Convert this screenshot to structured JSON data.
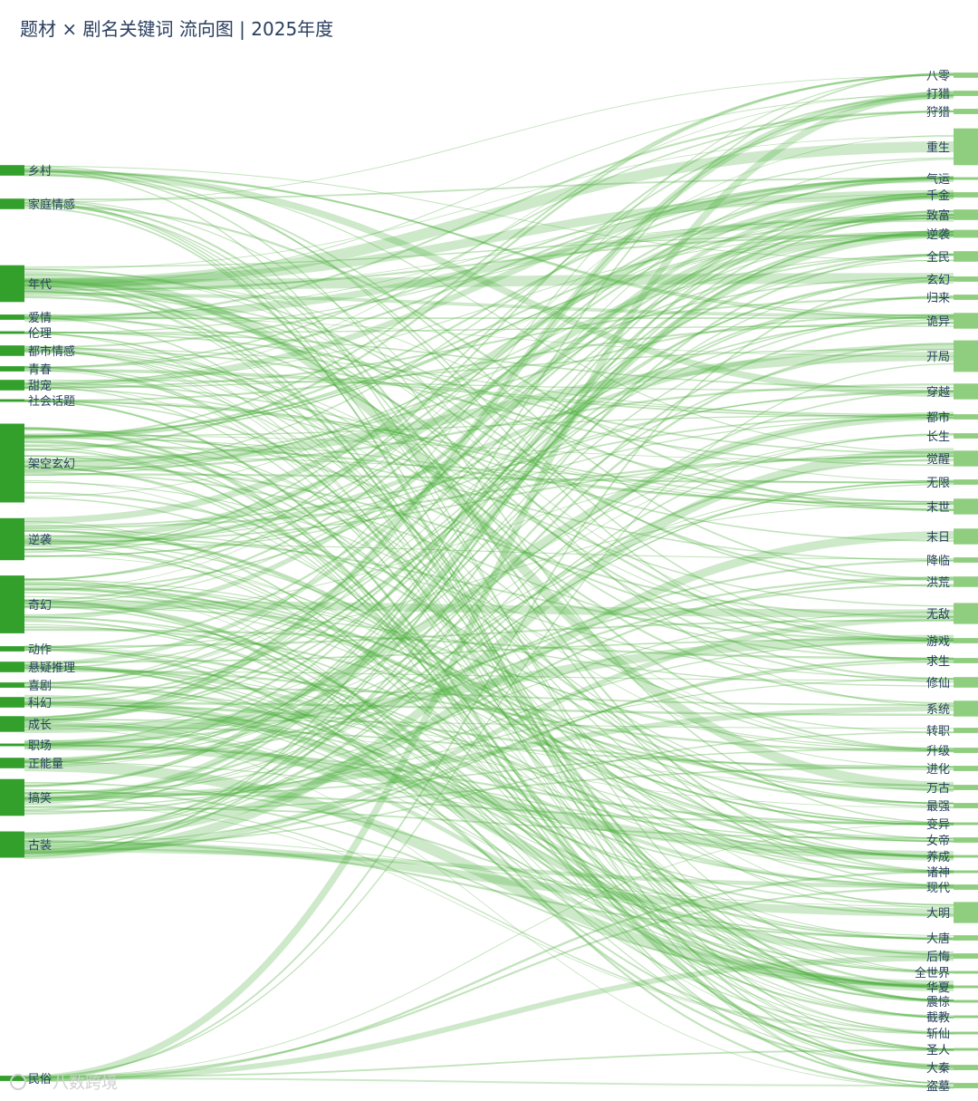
{
  "title": "题材 × 剧名关键词 流向图 | 2025年度",
  "watermark": "八数跨境",
  "colors": {
    "node_left": "#33a02c",
    "node_right": "#8fce7f",
    "link": "#4caf3c",
    "title": "#2a3f5f",
    "label": "#2a3f5f"
  },
  "chart_data": {
    "type": "sankey",
    "source_nodes": [
      "乡村",
      "家庭情感",
      "年代",
      "爱情",
      "伦理",
      "都市情感",
      "青春",
      "甜宠",
      "社会话题",
      "架空玄幻",
      "逆袭",
      "奇幻",
      "动作",
      "悬疑推理",
      "喜剧",
      "科幻",
      "成长",
      "职场",
      "正能量",
      "搞笑",
      "古装",
      "民俗"
    ],
    "target_nodes": [
      "八零",
      "打猎",
      "狩猎",
      "重生",
      "气运",
      "千金",
      "致富",
      "逆袭",
      "全民",
      "玄幻",
      "归来",
      "诡异",
      "开局",
      "穿越",
      "都市",
      "长生",
      "觉醒",
      "无限",
      "末世",
      "末日",
      "降临",
      "洪荒",
      "无敌",
      "游戏",
      "求生",
      "修仙",
      "系统",
      "转职",
      "升级",
      "进化",
      "万古",
      "最强",
      "变异",
      "女帝",
      "养成",
      "诸神",
      "现代",
      "大明",
      "大唐",
      "后悔",
      "全世界",
      "华夏",
      "震惊",
      "截教",
      "斩仙",
      "圣人",
      "大秦",
      "盗墓"
    ],
    "source_weights": [
      2,
      2,
      7,
      1,
      0.5,
      2,
      1,
      2,
      0.5,
      15,
      8,
      11,
      1,
      2,
      1,
      2,
      3,
      0.5,
      2,
      7,
      5,
      1
    ],
    "target_weights": [
      1,
      1,
      1,
      7,
      0.5,
      1,
      2,
      1.5,
      2,
      1,
      1,
      3,
      6,
      3,
      1,
      1,
      3,
      1,
      3,
      3,
      1,
      2,
      4,
      1,
      1,
      2,
      3,
      1,
      1,
      1,
      1,
      1,
      0.5,
      1,
      0.5,
      0.5,
      1,
      4,
      1,
      1,
      0.5,
      0.5,
      0.5,
      0.5,
      0.5,
      0.5,
      1,
      1
    ]
  }
}
